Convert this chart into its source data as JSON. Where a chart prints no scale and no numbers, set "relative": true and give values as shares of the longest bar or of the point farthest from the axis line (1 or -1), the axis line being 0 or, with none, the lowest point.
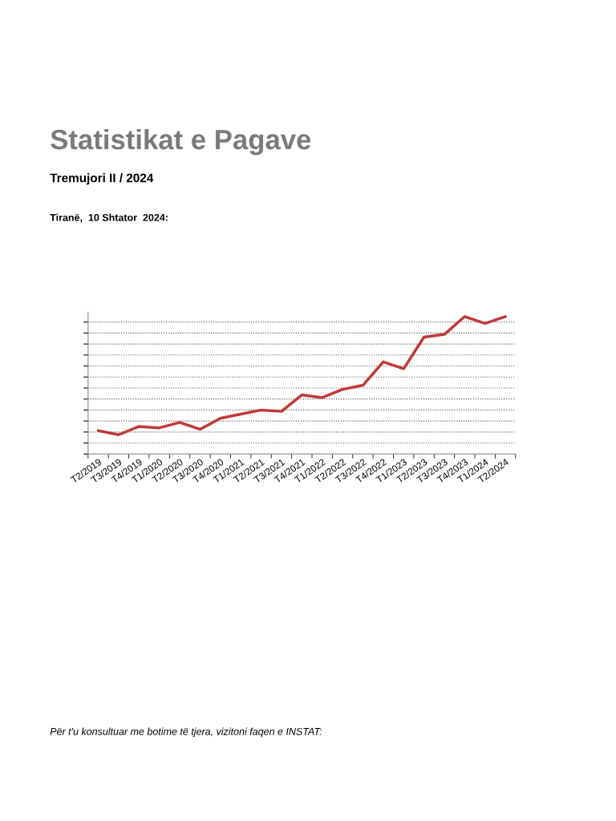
{
  "chart_data": {
    "type": "line",
    "title": "Statistikat e Pagave",
    "subtitle": "Tremujori II / 2024",
    "annotations": [
      "Tiranë,  10 Shtator  2024:",
      "Për t'u konsultuar me botime të tjera, vizitoni faqen e INSTAT:"
    ],
    "categories": [
      "T2/2019",
      "T3/2019",
      "T4/2019",
      "T1/2020",
      "T2/2020",
      "T3/2020",
      "T4/2020",
      "T1/2021",
      "T2/2021",
      "T3/2021",
      "T4/2021",
      "T1/2022",
      "T2/2022",
      "T3/2022",
      "T4/2022",
      "T1/2023",
      "T2/2023",
      "T3/2023",
      "T4/2023",
      "T1/2024",
      "T2/2024"
    ],
    "series": [
      {
        "color": "#c0393b",
        "values": [
          0.17,
          0.14,
          0.2,
          0.19,
          0.23,
          0.18,
          0.26,
          0.29,
          0.32,
          0.31,
          0.43,
          0.41,
          0.47,
          0.5,
          0.67,
          0.62,
          0.85,
          0.87,
          1.0,
          0.95,
          1.0
        ]
      }
    ],
    "relative": true,
    "grid": "y",
    "legend": false,
    "marker": "none",
    "line_style": "solid"
  }
}
